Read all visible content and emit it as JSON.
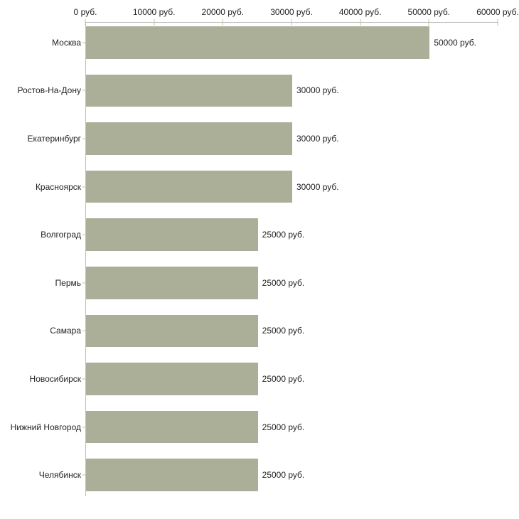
{
  "chart_data": {
    "type": "bar",
    "orientation": "horizontal",
    "categories": [
      "Москва",
      "Ростов-На-Дону",
      "Екатеринбург",
      "Красноярск",
      "Волгоград",
      "Пермь",
      "Самара",
      "Новосибирск",
      "Нижний Новгород",
      "Челябинск"
    ],
    "values": [
      50000,
      30000,
      30000,
      30000,
      25000,
      25000,
      25000,
      25000,
      25000,
      25000
    ],
    "value_labels": [
      "50000 руб.",
      "30000 руб.",
      "30000 руб.",
      "30000 руб.",
      "25000 руб.",
      "25000 руб.",
      "25000 руб.",
      "25000 руб.",
      "25000 руб.",
      "25000 руб."
    ],
    "x_tick_values": [
      0,
      10000,
      20000,
      30000,
      40000,
      50000,
      60000
    ],
    "x_tick_labels": [
      "0 руб.",
      "10000 руб.",
      "20000 руб.",
      "30000 руб.",
      "40000 руб.",
      "50000 руб.",
      "60000 руб."
    ],
    "xlim": [
      0,
      60000
    ],
    "unit": "руб.",
    "grid": false,
    "legend": "none",
    "colors": {
      "bar": "#abaf98",
      "axis_line": "#bfbfbf",
      "tick_mark": "#dfe3c8",
      "label_text": "#222222",
      "background": "#ffffff"
    }
  }
}
